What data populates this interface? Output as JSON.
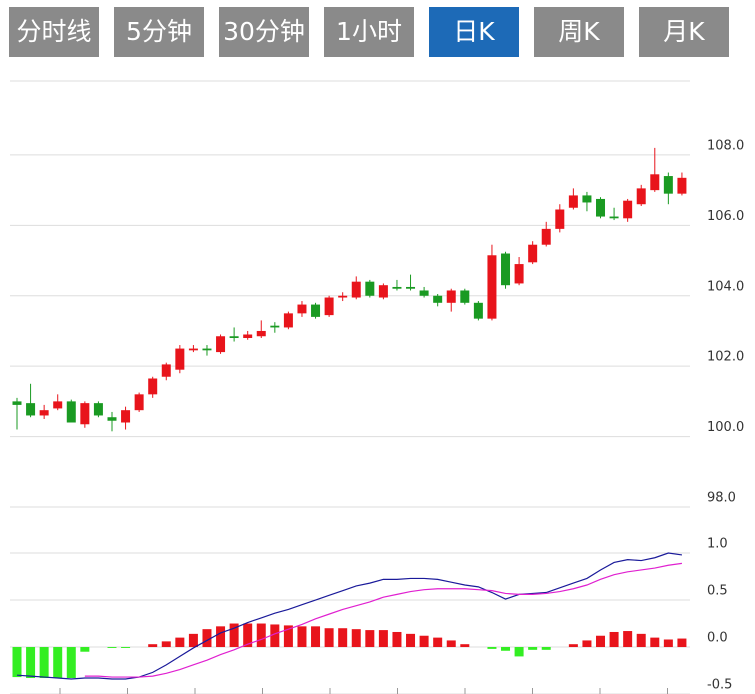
{
  "tabs": [
    "分时线",
    "5分钟",
    "30分钟",
    "1小时",
    "日K",
    "周K",
    "月K"
  ],
  "active_tab": 4,
  "chart_data": [
    {
      "type": "candlestick",
      "up_color": "#e8141b",
      "down_color": "#1a9a22",
      "grid": true,
      "ylim": [
        98,
        110.1
      ],
      "yticks": [
        {
          "value": 98,
          "label": "98.0"
        },
        {
          "value": 100,
          "label": "100.0"
        },
        {
          "value": 102,
          "label": "102.0"
        },
        {
          "value": 104,
          "label": "104.0"
        },
        {
          "value": 106,
          "label": "106.0"
        },
        {
          "value": 108,
          "label": "108.0"
        }
      ],
      "open": [
        101.0,
        100.95,
        100.6,
        100.8,
        101.0,
        100.35,
        100.95,
        100.55,
        100.4,
        100.75,
        101.2,
        101.7,
        101.9,
        102.45,
        102.5,
        102.4,
        102.85,
        102.8,
        102.85,
        103.15,
        103.1,
        103.5,
        103.75,
        103.45,
        103.95,
        103.95,
        104.4,
        103.95,
        104.25,
        104.25,
        104.15,
        104.0,
        103.8,
        104.15,
        103.8,
        103.35,
        105.2,
        104.35,
        104.95,
        105.45,
        105.9,
        106.5,
        106.85,
        106.75,
        106.25,
        106.2,
        106.6,
        107.0,
        107.4,
        106.9
      ],
      "high": [
        101.1,
        101.5,
        100.9,
        101.2,
        101.05,
        101.0,
        101.0,
        100.7,
        100.85,
        101.25,
        101.7,
        102.1,
        102.6,
        102.6,
        102.6,
        102.9,
        103.1,
        103.0,
        103.3,
        103.25,
        103.55,
        103.85,
        103.8,
        104.0,
        104.1,
        104.55,
        104.45,
        104.35,
        104.45,
        104.6,
        104.25,
        104.05,
        104.2,
        104.2,
        103.85,
        105.45,
        105.25,
        105.1,
        105.55,
        106.1,
        106.6,
        107.05,
        106.95,
        106.8,
        106.5,
        106.75,
        107.15,
        108.2,
        107.5,
        107.5
      ],
      "low": [
        100.2,
        100.55,
        100.5,
        100.75,
        100.4,
        100.25,
        100.55,
        100.15,
        100.2,
        100.7,
        101.1,
        101.6,
        101.8,
        102.4,
        102.3,
        102.35,
        102.7,
        102.75,
        102.8,
        102.95,
        103.05,
        103.4,
        103.35,
        103.4,
        103.85,
        103.9,
        103.95,
        103.9,
        104.15,
        104.15,
        103.95,
        103.7,
        103.55,
        103.75,
        103.3,
        103.3,
        104.2,
        104.3,
        104.9,
        105.4,
        105.8,
        106.45,
        106.4,
        106.2,
        106.15,
        106.1,
        106.55,
        106.95,
        106.6,
        106.85
      ],
      "close": [
        100.9,
        100.6,
        100.75,
        101.0,
        100.4,
        100.95,
        100.6,
        100.45,
        100.75,
        101.2,
        101.65,
        102.05,
        102.5,
        102.5,
        102.45,
        102.85,
        102.8,
        102.9,
        103.0,
        103.1,
        103.5,
        103.75,
        103.4,
        103.95,
        104.0,
        104.4,
        104.0,
        104.3,
        104.2,
        104.2,
        104.0,
        103.8,
        104.15,
        103.8,
        103.35,
        105.15,
        104.3,
        104.9,
        105.45,
        105.9,
        106.45,
        106.85,
        106.65,
        106.25,
        106.2,
        106.7,
        107.05,
        107.45,
        106.9,
        107.35
      ]
    },
    {
      "type": "macd",
      "grid": true,
      "ylim": [
        -0.5,
        1.49
      ],
      "yticks": [
        -0.5,
        {
          "value": 0,
          "label": "0.0"
        },
        0.5,
        {
          "value": 1,
          "label": "1.0"
        }
      ],
      "histogram": {
        "up_color": "#e8141b",
        "down_color": "#33ee22",
        "values": [
          -0.32,
          -0.33,
          -0.33,
          -0.33,
          -0.33,
          -0.05,
          0,
          -0.01,
          -0.01,
          0,
          0.03,
          0.06,
          0.1,
          0.14,
          0.19,
          0.22,
          0.25,
          0.25,
          0.25,
          0.24,
          0.23,
          0.22,
          0.22,
          0.2,
          0.2,
          0.19,
          0.18,
          0.18,
          0.16,
          0.14,
          0.12,
          0.1,
          0.07,
          0.03,
          0,
          -0.02,
          -0.04,
          -0.1,
          -0.03,
          -0.03,
          0,
          0.03,
          0.07,
          0.12,
          0.16,
          0.17,
          0.14,
          0.1,
          0.08,
          0.09
        ]
      },
      "lines": [
        {
          "color": "#1a1a9a",
          "values": [
            -0.3,
            -0.31,
            -0.32,
            -0.33,
            -0.34,
            -0.33,
            -0.33,
            -0.34,
            -0.34,
            -0.32,
            -0.27,
            -0.19,
            -0.1,
            -0.01,
            0.07,
            0.15,
            0.2,
            0.26,
            0.31,
            0.36,
            0.4,
            0.45,
            0.5,
            0.55,
            0.6,
            0.65,
            0.68,
            0.72,
            0.72,
            0.73,
            0.73,
            0.72,
            0.69,
            0.66,
            0.64,
            0.58,
            0.51,
            0.56,
            0.57,
            0.58,
            0.63,
            0.68,
            0.73,
            0.82,
            0.9,
            0.93,
            0.92,
            0.95,
            1.0,
            0.98
          ]
        },
        {
          "color": "#e020d0",
          "values": [
            null,
            null,
            null,
            null,
            null,
            -0.31,
            -0.31,
            -0.32,
            -0.32,
            -0.32,
            -0.31,
            -0.28,
            -0.24,
            -0.19,
            -0.14,
            -0.08,
            -0.03,
            0.03,
            0.08,
            0.14,
            0.19,
            0.24,
            0.3,
            0.35,
            0.4,
            0.44,
            0.48,
            0.53,
            0.56,
            0.59,
            0.61,
            0.62,
            0.62,
            0.62,
            0.61,
            0.6,
            0.57,
            0.56,
            0.56,
            0.57,
            0.59,
            0.62,
            0.66,
            0.72,
            0.77,
            0.8,
            0.82,
            0.84,
            0.87,
            0.89
          ]
        }
      ]
    }
  ]
}
